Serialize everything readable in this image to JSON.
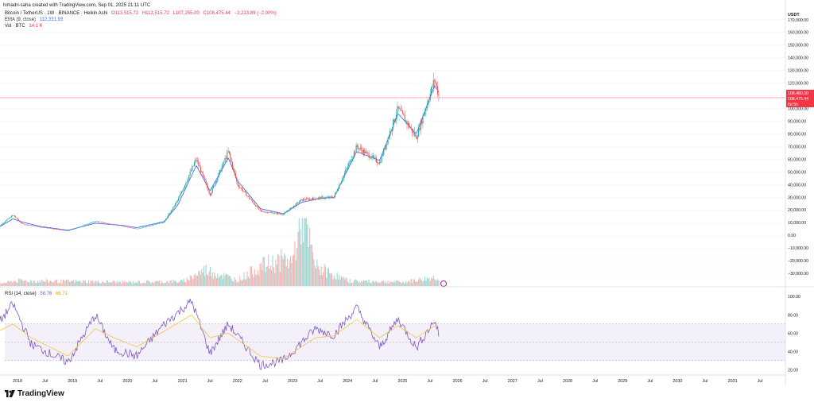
{
  "header": {
    "created": "himadri-saha created with TradingView.com, Sep 01, 2025 21:11 UTC"
  },
  "legend": {
    "symbol": "Bitcoin / TetherUS · 1W · BINANCE · Heikin Ashi",
    "ohlc": {
      "o": "O113,515.72",
      "h": "H113,515.72",
      "l": "L107,255.00",
      "c": "C108,475.44",
      "chg": "−2,213.89 (−2.00%)"
    },
    "ema_label": "EMA (9, close)",
    "ema_value": "112,331.93",
    "vol_label": "Vol · BTC",
    "vol_value": "14.1 K",
    "rsi_label": "RSI (14, close)",
    "rsi_value": "56.76",
    "rsi_ma_value": "66.71"
  },
  "brand": {
    "name": "TradingView"
  },
  "colors": {
    "up": "#26a69a",
    "down": "#ef5350",
    "ema": "#2962ff",
    "rsi": "#7e57c2",
    "rsi_ma": "#f5c242",
    "price_line": "#f23645"
  },
  "chart_data": [
    {
      "type": "candlestick",
      "title": "Bitcoin / TetherUS · 1W · BINANCE · Heikin Ashi",
      "ylabel": "USDT",
      "ylim": [
        -40000,
        178000
      ],
      "yticks": [
        -30000,
        -20000,
        -10000,
        0,
        10000,
        20000,
        30000,
        40000,
        50000,
        60000,
        70000,
        80000,
        90000,
        100000,
        110000,
        120000,
        130000,
        140000,
        150000,
        160000,
        170000
      ],
      "ytick_labels": [
        "−30,000.00",
        "−20,000.00",
        "−10,000.00",
        "0.00",
        "10,000.00",
        "20,000.00",
        "30,000.00",
        "40,000.00",
        "50,000.00",
        "60,000.00",
        "70,000.00",
        "80,000.00",
        "90,000.00",
        "100,000.00",
        "110,000.00",
        "120,000.00",
        "130,000.00",
        "140,000.00",
        "150,000.00",
        "160,000.00",
        "170,000.00"
      ],
      "current_price": {
        "value": 108475.44,
        "labels": [
          "108,480.00",
          "108,475.44",
          "6d 5h"
        ]
      },
      "series": [
        {
          "name": "Close",
          "x": [
            "2017-08",
            "2017-12",
            "2018-02",
            "2018-06",
            "2018-12",
            "2019-06",
            "2019-12",
            "2020-03",
            "2020-09",
            "2020-12",
            "2021-04",
            "2021-07",
            "2021-11",
            "2022-01",
            "2022-06",
            "2022-11",
            "2023-03",
            "2023-07",
            "2023-10",
            "2024-03",
            "2024-08",
            "2024-12",
            "2025-04",
            "2025-08",
            "2025-09"
          ],
          "values": [
            4300,
            16000,
            9000,
            6500,
            3500,
            11000,
            7200,
            5000,
            10500,
            28000,
            60000,
            32000,
            66000,
            40000,
            19000,
            16500,
            28000,
            29500,
            30000,
            70000,
            57000,
            100000,
            77000,
            123000,
            108475
          ]
        },
        {
          "name": "EMA (9, close)",
          "x": [
            "2017-08",
            "2017-12",
            "2018-02",
            "2018-06",
            "2018-12",
            "2019-06",
            "2019-12",
            "2020-03",
            "2020-09",
            "2020-12",
            "2021-04",
            "2021-07",
            "2021-11",
            "2022-01",
            "2022-06",
            "2022-11",
            "2023-03",
            "2023-07",
            "2023-10",
            "2024-03",
            "2024-08",
            "2024-12",
            "2025-04",
            "2025-08",
            "2025-09"
          ],
          "values": [
            4300,
            13000,
            10500,
            7000,
            4000,
            9500,
            7800,
            6000,
            10800,
            24000,
            55000,
            35000,
            61000,
            43000,
            21000,
            17000,
            26000,
            29000,
            29800,
            66000,
            59000,
            96000,
            80000,
            118000,
            112332
          ]
        }
      ]
    },
    {
      "type": "bar",
      "title": "Vol · BTC",
      "x": [
        "2017-08",
        "2018",
        "2019",
        "2020",
        "2021",
        "2021-06",
        "2022",
        "2022-06",
        "2022-11",
        "2023",
        "2023-03",
        "2023-06",
        "2024",
        "2025",
        "2025-09"
      ],
      "values": [
        3,
        8,
        7,
        6,
        7,
        25,
        9,
        30,
        40,
        38,
        110,
        30,
        8,
        6,
        14.1
      ],
      "ylabel": ""
    },
    {
      "type": "line",
      "title": "RSI (14, close)",
      "ylim": [
        16,
        108
      ],
      "yticks": [
        20,
        40,
        60,
        80,
        100
      ],
      "ytick_labels": [
        "20.00",
        "40.00",
        "60.00",
        "80.00",
        "100.00"
      ],
      "band": [
        30,
        70
      ],
      "x": [
        "2017-08",
        "2017-12",
        "2018-04",
        "2018-12",
        "2019-06",
        "2019-10",
        "2020-03",
        "2020-09",
        "2021-03",
        "2021-07",
        "2021-11",
        "2022-06",
        "2022-11",
        "2023-06",
        "2023-10",
        "2024-03",
        "2024-08",
        "2024-12",
        "2025-04",
        "2025-08",
        "2025-09"
      ],
      "series": [
        {
          "name": "RSI",
          "values": [
            65,
            92,
            48,
            28,
            80,
            42,
            35,
            70,
            95,
            38,
            70,
            25,
            30,
            65,
            58,
            88,
            44,
            76,
            44,
            74,
            56.76
          ]
        },
        {
          "name": "RSI-based MA",
          "values": [
            60,
            70,
            55,
            35,
            65,
            55,
            45,
            62,
            80,
            55,
            60,
            35,
            32,
            55,
            57,
            75,
            55,
            68,
            55,
            68,
            66.71
          ]
        }
      ]
    },
    {
      "type": "time-axis",
      "categories": [
        "2018",
        "Jul",
        "2019",
        "Jul",
        "2020",
        "Jul",
        "2021",
        "Jul",
        "2022",
        "Jul",
        "2023",
        "Jul",
        "2024",
        "Jul",
        "2025",
        "Jul",
        "2026",
        "Jul",
        "2027",
        "Jul",
        "2028",
        "Jul",
        "2029",
        "Jul",
        "2030",
        "Jul",
        "2031",
        "Jul"
      ]
    }
  ]
}
